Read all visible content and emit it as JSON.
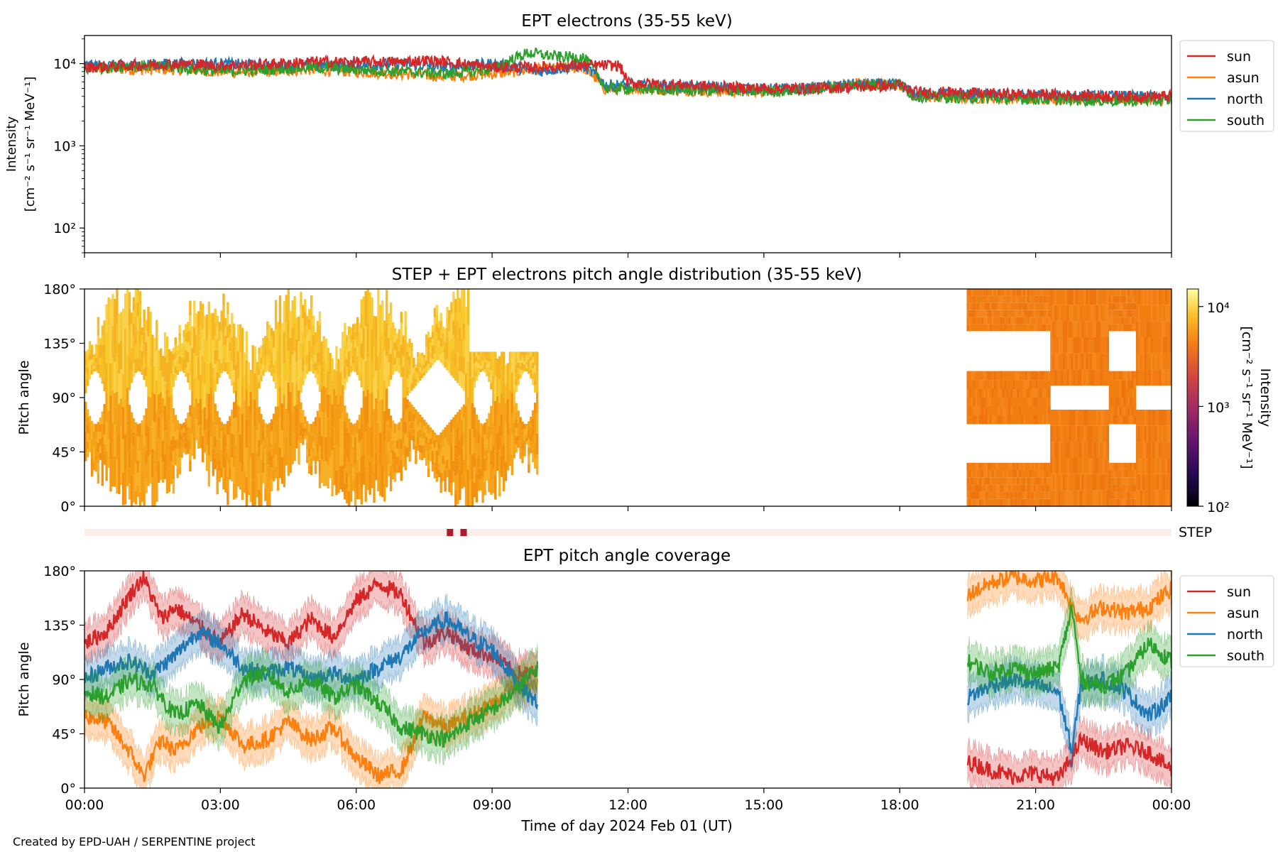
{
  "credit": "Created by EPD-UAH / SERPENTINE project",
  "colors": {
    "sun": "#d62728",
    "asun": "#ff7f0e",
    "north": "#1f77b4",
    "south": "#2ca02c",
    "step": "#b2182b",
    "step_bg": "#fdeeea"
  },
  "chart_data": [
    {
      "type": "line",
      "title": "EPT electrons (35-55 keV)",
      "ylabel": [
        "Intensity",
        "[cm⁻² s⁻¹ sr⁻¹ MeV⁻¹]"
      ],
      "yscale": "log",
      "ylim": [
        50,
        22000
      ],
      "yticks": [
        {
          "v": 100,
          "label": "10²"
        },
        {
          "v": 1000,
          "label": "10³"
        },
        {
          "v": 10000,
          "label": "10⁴"
        }
      ],
      "xlim": [
        0,
        24
      ],
      "legend": "outside-right",
      "series": [
        {
          "name": "sun",
          "x": [
            0,
            1,
            2,
            3,
            4,
            5,
            6,
            7,
            7.5,
            8,
            9,
            10,
            11,
            11.8,
            12,
            13,
            14,
            15,
            16,
            17,
            18,
            18.3,
            19,
            20,
            21,
            22,
            23,
            24
          ],
          "y": [
            9000,
            9500,
            10000,
            9500,
            9800,
            10500,
            10500,
            10500,
            11000,
            10500,
            9000,
            9000,
            9500,
            9500,
            5800,
            5600,
            5200,
            5000,
            5000,
            5200,
            5400,
            4500,
            4500,
            4300,
            4200,
            4100,
            4000,
            4000
          ]
        },
        {
          "name": "asun",
          "x": [
            0,
            1,
            2,
            3,
            4,
            5,
            6,
            7,
            8,
            9,
            10,
            11,
            11.5,
            12,
            13,
            14,
            15,
            16,
            17,
            18,
            18.3,
            19,
            20,
            21,
            22,
            23,
            24
          ],
          "y": [
            9000,
            8500,
            8500,
            8000,
            8000,
            8500,
            8000,
            7500,
            7000,
            7500,
            8500,
            9000,
            4800,
            5000,
            4800,
            4600,
            4700,
            4800,
            5800,
            5600,
            4000,
            3900,
            3800,
            3800,
            3700,
            3700,
            3600
          ]
        },
        {
          "name": "north",
          "x": [
            0,
            1,
            2,
            3,
            4,
            5,
            6,
            7,
            8,
            9,
            10,
            11,
            11.5,
            12,
            13,
            14,
            15,
            16,
            17,
            18,
            18.3,
            19,
            20,
            21,
            22,
            23,
            24
          ],
          "y": [
            9500,
            9500,
            10000,
            10000,
            9500,
            9500,
            9500,
            10000,
            9000,
            10000,
            8000,
            9500,
            5500,
            5500,
            5200,
            5200,
            4900,
            5000,
            5600,
            5600,
            4300,
            4300,
            4100,
            4100,
            4000,
            4000,
            3900
          ]
        },
        {
          "name": "south",
          "x": [
            0,
            1,
            2,
            3,
            4,
            5,
            6,
            7,
            8,
            9,
            9.8,
            10.5,
            11,
            11.5,
            12,
            13,
            14,
            15,
            16,
            17,
            18,
            18.3,
            19,
            20,
            21,
            22,
            23,
            24
          ],
          "y": [
            8500,
            9500,
            9000,
            8000,
            8500,
            9000,
            8500,
            8000,
            7500,
            8500,
            13500,
            12000,
            12000,
            5000,
            5000,
            4800,
            4700,
            4600,
            4800,
            5500,
            5600,
            4000,
            3900,
            3800,
            3700,
            3600,
            3500,
            3600
          ]
        }
      ]
    },
    {
      "type": "heatmap",
      "title": "STEP + EPT electrons pitch angle distribution (35-55 keV)",
      "ylabel": "Pitch angle",
      "ylim": [
        0,
        180
      ],
      "yticks": [
        "0°",
        "45°",
        "90°",
        "135°",
        "180°"
      ],
      "xlim": [
        0,
        24
      ],
      "data_coverage_hours": [
        [
          0,
          10
        ],
        [
          19.5,
          24
        ]
      ],
      "colorbar": {
        "label": [
          "Intensity",
          "[cm⁻² s⁻¹ sr⁻¹ MeV⁻¹]"
        ],
        "scale": "log",
        "range": [
          100,
          15000
        ],
        "ticks": [
          {
            "v": 100,
            "label": "10²"
          },
          {
            "v": 1000,
            "label": "10³"
          },
          {
            "v": 10000,
            "label": "10⁴"
          }
        ]
      }
    },
    {
      "type": "heatmap",
      "label": "STEP",
      "xlim": [
        0,
        24
      ],
      "marks_hours": [
        8.0,
        8.3
      ]
    },
    {
      "type": "line",
      "title": "EPT pitch angle coverage",
      "ylabel": "Pitch angle",
      "ylim": [
        0,
        180
      ],
      "yticks": [
        "0°",
        "45°",
        "90°",
        "135°",
        "180°"
      ],
      "xlim": [
        0,
        24
      ],
      "xticks": [
        "00:00",
        "03:00",
        "06:00",
        "09:00",
        "12:00",
        "15:00",
        "18:00",
        "21:00",
        "00:00"
      ],
      "xlabel": "Time of day 2024 Feb 01 (UT)",
      "legend": "outside-right",
      "segments_hours": [
        [
          0,
          10
        ],
        [
          19.5,
          24
        ]
      ],
      "series": [
        {
          "name": "sun",
          "x": [
            0,
            0.5,
            1,
            1.3,
            1.7,
            2,
            2.5,
            3,
            3.5,
            4,
            4.5,
            5,
            5.5,
            6,
            6.5,
            7,
            7.5,
            8,
            8.5,
            9,
            9.5,
            10,
            19.5,
            20,
            20.5,
            21,
            21.5,
            21.8,
            22,
            22.5,
            23,
            23.5,
            24
          ],
          "y": [
            120,
            130,
            160,
            175,
            140,
            150,
            135,
            120,
            145,
            130,
            120,
            140,
            125,
            155,
            170,
            160,
            120,
            130,
            115,
            110,
            95,
            95,
            22,
            15,
            10,
            12,
            8,
            25,
            40,
            30,
            35,
            30,
            15
          ]
        },
        {
          "name": "asun",
          "x": [
            0,
            0.5,
            1,
            1.3,
            1.7,
            2,
            2.5,
            3,
            3.5,
            4,
            4.5,
            5,
            5.5,
            6,
            6.5,
            7,
            7.5,
            8,
            8.5,
            9,
            9.5,
            10,
            19.5,
            20,
            20.5,
            21,
            21.5,
            21.8,
            22,
            22.5,
            23,
            23.5,
            24
          ],
          "y": [
            60,
            55,
            30,
            10,
            40,
            30,
            50,
            60,
            35,
            40,
            55,
            40,
            50,
            25,
            10,
            15,
            60,
            50,
            60,
            70,
            85,
            85,
            160,
            170,
            175,
            172,
            175,
            150,
            140,
            150,
            145,
            150,
            165
          ]
        },
        {
          "name": "north",
          "x": [
            0,
            0.5,
            1,
            1.5,
            2,
            2.5,
            3,
            3.5,
            4,
            4.5,
            5,
            5.5,
            6,
            6.5,
            7,
            7.5,
            8,
            8.5,
            9,
            9.5,
            10,
            19.5,
            20,
            20.5,
            21,
            21.5,
            21.8,
            22,
            22.5,
            23,
            23.5,
            24
          ],
          "y": [
            90,
            100,
            105,
            95,
            110,
            130,
            120,
            100,
            95,
            100,
            90,
            95,
            90,
            100,
            110,
            130,
            140,
            125,
            115,
            90,
            70,
            75,
            85,
            90,
            85,
            80,
            30,
            85,
            90,
            80,
            60,
            75
          ]
        },
        {
          "name": "south",
          "x": [
            0,
            0.5,
            1,
            1.5,
            2,
            2.5,
            3,
            3.5,
            4,
            4.5,
            5,
            5.5,
            6,
            6.5,
            7,
            7.5,
            8,
            8.5,
            9,
            9.5,
            10,
            19.5,
            20,
            20.5,
            21,
            21.5,
            21.8,
            22,
            22.5,
            23,
            23.5,
            24
          ],
          "y": [
            80,
            75,
            90,
            85,
            60,
            70,
            50,
            90,
            95,
            80,
            90,
            75,
            85,
            70,
            50,
            45,
            40,
            55,
            65,
            80,
            100,
            105,
            95,
            100,
            95,
            100,
            150,
            90,
            85,
            95,
            120,
            105
          ]
        }
      ]
    }
  ]
}
